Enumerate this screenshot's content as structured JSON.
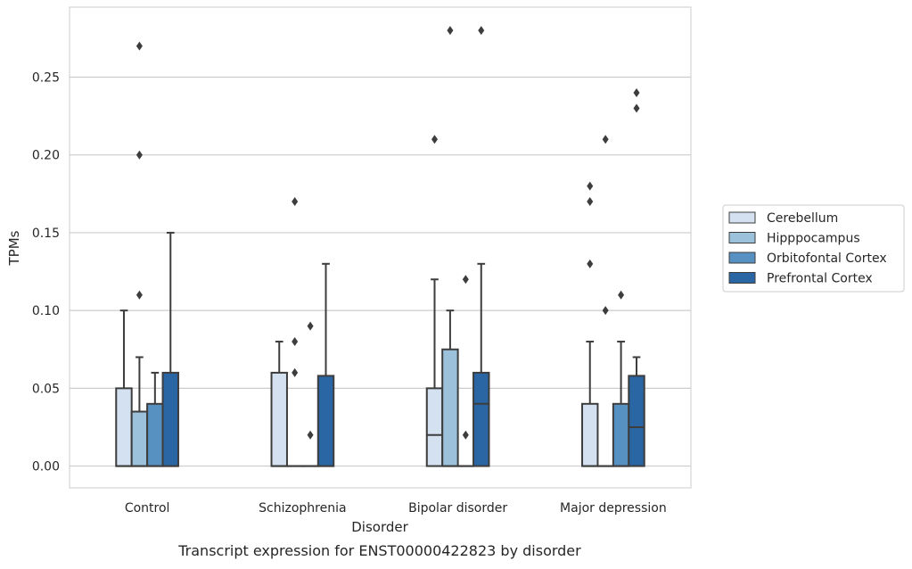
{
  "chart_data": {
    "type": "box",
    "title": "Transcript expression for ENST00000422823 by disorder",
    "xlabel": "Disorder",
    "ylabel": "TPMs",
    "ylim": [
      -0.014,
      0.295
    ],
    "yticks": [
      0.0,
      0.05,
      0.1,
      0.15,
      0.2,
      0.25
    ],
    "ytick_labels": [
      "0.00",
      "0.05",
      "0.10",
      "0.15",
      "0.20",
      "0.25"
    ],
    "grid": "horizontal",
    "legend_position": "right",
    "categories": [
      "Control",
      "Schizophrenia",
      "Bipolar disorder",
      "Major depression"
    ],
    "series": [
      {
        "name": "Cerebellum",
        "color": "#d3e1f0",
        "boxes": [
          {
            "whislo": 0.0,
            "q1": 0.0,
            "med": 0.0,
            "q3": 0.05,
            "whishi": 0.1,
            "fliers": []
          },
          {
            "whislo": 0.0,
            "q1": 0.0,
            "med": 0.0,
            "q3": 0.06,
            "whishi": 0.08,
            "fliers": []
          },
          {
            "whislo": 0.0,
            "q1": 0.0,
            "med": 0.02,
            "q3": 0.05,
            "whishi": 0.12,
            "fliers": [
              0.21
            ]
          },
          {
            "whislo": 0.0,
            "q1": 0.0,
            "med": 0.0,
            "q3": 0.04,
            "whishi": 0.08,
            "fliers": [
              0.13,
              0.17,
              0.18
            ]
          }
        ]
      },
      {
        "name": "Hipppocampus",
        "color": "#9bc2da",
        "boxes": [
          {
            "whislo": 0.0,
            "q1": 0.0,
            "med": 0.0,
            "q3": 0.035,
            "whishi": 0.07,
            "fliers": [
              0.11,
              0.2,
              0.27
            ]
          },
          {
            "whislo": 0.0,
            "q1": 0.0,
            "med": 0.0,
            "q3": 0.0,
            "whishi": 0.0,
            "fliers": [
              0.06,
              0.08,
              0.17
            ]
          },
          {
            "whislo": 0.0,
            "q1": 0.0,
            "med": 0.0,
            "q3": 0.075,
            "whishi": 0.1,
            "fliers": [
              0.28
            ]
          },
          {
            "whislo": 0.0,
            "q1": 0.0,
            "med": 0.0,
            "q3": 0.0,
            "whishi": 0.0,
            "fliers": [
              0.1,
              0.21
            ]
          }
        ]
      },
      {
        "name": "Orbitofontal Cortex",
        "color": "#5691c1",
        "boxes": [
          {
            "whislo": 0.0,
            "q1": 0.0,
            "med": 0.0,
            "q3": 0.04,
            "whishi": 0.06,
            "fliers": []
          },
          {
            "whislo": 0.0,
            "q1": 0.0,
            "med": 0.0,
            "q3": 0.0,
            "whishi": 0.0,
            "fliers": [
              0.02,
              0.09
            ]
          },
          {
            "whislo": 0.0,
            "q1": 0.0,
            "med": 0.0,
            "q3": 0.0,
            "whishi": 0.0,
            "fliers": [
              0.02,
              0.12
            ]
          },
          {
            "whislo": 0.0,
            "q1": 0.0,
            "med": 0.0,
            "q3": 0.04,
            "whishi": 0.08,
            "fliers": [
              0.11
            ]
          }
        ]
      },
      {
        "name": "Prefrontal Cortex",
        "color": "#2a66a3",
        "boxes": [
          {
            "whislo": 0.0,
            "q1": 0.0,
            "med": 0.0,
            "q3": 0.06,
            "whishi": 0.15,
            "fliers": []
          },
          {
            "whislo": 0.0,
            "q1": 0.0,
            "med": 0.0,
            "q3": 0.058,
            "whishi": 0.13,
            "fliers": []
          },
          {
            "whislo": 0.0,
            "q1": 0.0,
            "med": 0.04,
            "q3": 0.06,
            "whishi": 0.13,
            "fliers": [
              0.28
            ]
          },
          {
            "whislo": 0.0,
            "q1": 0.0,
            "med": 0.025,
            "q3": 0.058,
            "whishi": 0.07,
            "fliers": [
              0.23,
              0.24
            ]
          }
        ]
      }
    ]
  },
  "style": {
    "edge_color": "#3d3d3d",
    "grid_color": "#cccccc",
    "axes_edge_color": "#cccccc",
    "text_color": "#262626"
  }
}
